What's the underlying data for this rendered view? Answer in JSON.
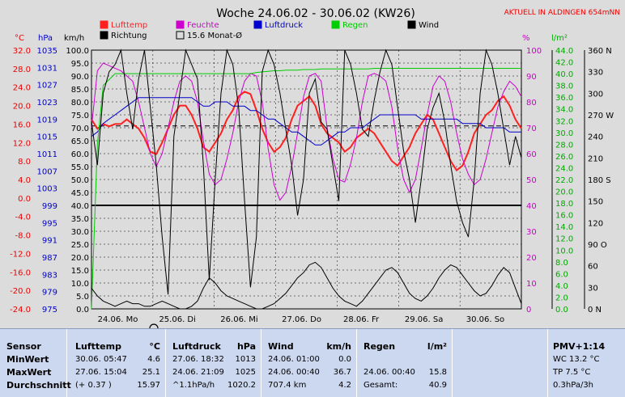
{
  "title": "Woche 24.06.02 - 30.06.02 (KW26)",
  "station": "AKTUELL IN ALDINGEN 654mNN",
  "colors": {
    "lufttemp": "#ff2020",
    "feuchte": "#cc00cc",
    "luftdruck": "#0000cc",
    "regen": "#00cc00",
    "wind": "#000000",
    "richtung": "#000000",
    "temp_axis": "#ee0000",
    "press_axis": "#0000cc",
    "hum_axis": "#cc00cc",
    "rain_axis": "#00aa00"
  },
  "legend": [
    {
      "label": "Lufttemp",
      "color": "#ff2020",
      "style": "filled"
    },
    {
      "label": "Feuchte",
      "color": "#cc00cc",
      "style": "filled"
    },
    {
      "label": "Luftdruck",
      "color": "#0000cc",
      "style": "filled"
    },
    {
      "label": "Regen",
      "color": "#00cc00",
      "style": "filled"
    },
    {
      "label": "Wind",
      "color": "#000000",
      "style": "filled"
    },
    {
      "label": "Richtung",
      "color": "#000000",
      "style": "filled"
    },
    {
      "label": "15.6 Monat-Ø",
      "color": "#000000",
      "style": "outline"
    }
  ],
  "axis_units": {
    "temp": "°C",
    "press": "hPa",
    "wind": "km/h",
    "hum": "%",
    "rain": "l/m²"
  },
  "chart_data": {
    "type": "line",
    "title": "Woche 24.06.02 - 30.06.02 (KW26)",
    "x_labels": [
      "24.06. Mo",
      "25.06. Di",
      "26.06. Mi",
      "27.06. Do",
      "28.06. Fr",
      "29.06. Sa",
      "30.06. So"
    ],
    "axes": {
      "temp": {
        "unit": "°C",
        "min": -24,
        "max": 32,
        "ticks": [
          "32.0",
          "28.0",
          "24.0",
          "20.0",
          "16.0",
          "12.0",
          "8.0",
          "4.0",
          "0.0",
          "-4.0",
          "-8.0",
          "-12.0",
          "-16.0",
          "-20.0",
          "-24.0"
        ]
      },
      "press": {
        "unit": "hPa",
        "min": 975,
        "max": 1035,
        "ticks": [
          "1035",
          "1031",
          "1027",
          "1023",
          "1019",
          "1015",
          "1011",
          "1007",
          "1003",
          "999",
          "995",
          "991",
          "987",
          "983",
          "979",
          "975"
        ]
      },
      "wind": {
        "unit": "km/h",
        "min": 0,
        "max": 100,
        "ticks": [
          "100.0",
          "95.0",
          "90.0",
          "85.0",
          "80.0",
          "75.0",
          "70.0",
          "65.0",
          "60.0",
          "55.0",
          "50.0",
          "45.0",
          "40.0",
          "35.0",
          "30.0",
          "25.0",
          "20.0",
          "15.0",
          "10.0",
          "5.0",
          "0.0"
        ]
      },
      "hum": {
        "unit": "%",
        "min": 0,
        "max": 100,
        "ticks": [
          "100",
          "90",
          "80",
          "70",
          "60",
          "50",
          "40",
          "30",
          "20",
          "10",
          "0"
        ]
      },
      "rain": {
        "unit": "l/m²",
        "min": 0,
        "max": 44,
        "ticks": [
          "44.0",
          "42.0",
          "40.0",
          "38.0",
          "36.0",
          "34.0",
          "32.0",
          "30.0",
          "28.0",
          "26.0",
          "24.0",
          "22.0",
          "20.0",
          "18.0",
          "16.0",
          "14.0",
          "12.0",
          "10.0",
          "8.0",
          "6.0",
          "4.0",
          "2.0",
          "0.0"
        ]
      },
      "dir": {
        "min": 0,
        "max": 360,
        "ticks": [
          "360 N",
          "330",
          "300",
          "270 W",
          "240",
          "210",
          "180 S",
          "150",
          "120",
          "90 O",
          "60",
          "30",
          "0 N"
        ]
      }
    },
    "monat_avg_temp": 15.6,
    "series": [
      {
        "name": "Lufttemp",
        "axis": "temp",
        "values": [
          17,
          15,
          16,
          15.5,
          16,
          16,
          17,
          16,
          15,
          13,
          10,
          9.5,
          12,
          15,
          18,
          20,
          20,
          18,
          15,
          11,
          10,
          12,
          14,
          17,
          19,
          22,
          23,
          22.5,
          19,
          15,
          12,
          10,
          11,
          13,
          17,
          20,
          21,
          22,
          20,
          16,
          14,
          13,
          12,
          10,
          11,
          13,
          14,
          15,
          14,
          12,
          10,
          8,
          7,
          9,
          11,
          14,
          16,
          18,
          17,
          14,
          11,
          8,
          6,
          7,
          10,
          14,
          16,
          18,
          19,
          21,
          22,
          20,
          17,
          15
        ]
      },
      {
        "name": "Feuchte",
        "axis": "hum",
        "values": [
          70,
          92,
          95,
          94,
          93,
          92,
          90,
          88,
          80,
          70,
          60,
          55,
          60,
          70,
          80,
          88,
          90,
          88,
          80,
          65,
          52,
          48,
          50,
          58,
          68,
          80,
          88,
          91,
          90,
          80,
          62,
          48,
          42,
          45,
          55,
          68,
          82,
          90,
          91,
          88,
          70,
          58,
          50,
          49,
          56,
          66,
          80,
          90,
          91,
          90,
          88,
          78,
          62,
          50,
          45,
          50,
          62,
          75,
          86,
          90,
          88,
          80,
          68,
          58,
          52,
          48,
          50,
          58,
          68,
          78,
          84,
          88,
          86,
          82
        ]
      },
      {
        "name": "Luftdruck",
        "axis": "press",
        "values": [
          1015,
          1016,
          1018,
          1019,
          1020,
          1021,
          1022,
          1023,
          1024,
          1024,
          1024,
          1024,
          1024,
          1024,
          1024,
          1024,
          1024,
          1024,
          1023,
          1022,
          1022,
          1023,
          1023,
          1023,
          1022,
          1022,
          1022,
          1021,
          1021,
          1020,
          1019,
          1019,
          1018,
          1017,
          1016,
          1016,
          1015,
          1014,
          1013,
          1013,
          1014,
          1015,
          1016,
          1016,
          1017,
          1017,
          1017,
          1018,
          1019,
          1020,
          1020,
          1020,
          1020,
          1020,
          1020,
          1020,
          1019,
          1019,
          1019,
          1019,
          1019,
          1019,
          1019,
          1018,
          1018,
          1018,
          1018,
          1017,
          1017,
          1017,
          1017,
          1016,
          1016,
          1016
        ]
      },
      {
        "name": "Regen",
        "axis": "rain",
        "values": [
          0,
          28,
          38,
          39,
          40,
          40,
          40,
          40,
          40,
          40,
          40,
          40,
          40,
          40,
          40,
          40,
          40,
          40,
          40,
          40,
          40,
          40,
          40,
          40,
          40,
          40,
          40,
          40,
          40.2,
          40.3,
          40.4,
          40.5,
          40.5,
          40.6,
          40.6,
          40.6,
          40.7,
          40.7,
          40.7,
          40.8,
          40.8,
          40.8,
          40.8,
          40.8,
          40.8,
          40.8,
          40.8,
          40.8,
          40.9,
          40.9,
          40.9,
          40.9,
          40.9,
          40.9,
          40.9,
          40.9,
          40.9,
          40.9,
          40.9,
          40.9,
          40.9,
          40.9,
          40.9,
          40.9,
          40.9,
          40.9,
          40.9,
          40.9,
          40.9,
          40.9,
          40.9,
          40.9,
          40.9,
          40.9
        ]
      },
      {
        "name": "Wind",
        "axis": "wind",
        "values": [
          8,
          5,
          3,
          2,
          1,
          2,
          3,
          2,
          2,
          1,
          1,
          2,
          3,
          2,
          1,
          0,
          0,
          1,
          3,
          8,
          12,
          10,
          7,
          5,
          4,
          3,
          2,
          1,
          0,
          0,
          1,
          2,
          4,
          6,
          9,
          12,
          14,
          17,
          18,
          16,
          12,
          8,
          5,
          3,
          2,
          1,
          3,
          6,
          9,
          12,
          15,
          16,
          14,
          10,
          6,
          4,
          3,
          5,
          8,
          12,
          15,
          17,
          16,
          13,
          10,
          7,
          5,
          6,
          9,
          13,
          16,
          14,
          8,
          2
        ]
      },
      {
        "name": "Richtung",
        "axis": "dir",
        "values": [
          260,
          200,
          300,
          330,
          340,
          360,
          300,
          250,
          320,
          360,
          280,
          200,
          100,
          20,
          240,
          300,
          360,
          340,
          320,
          200,
          40,
          180,
          300,
          360,
          340,
          280,
          150,
          30,
          100,
          330,
          360,
          340,
          300,
          250,
          200,
          130,
          180,
          300,
          320,
          260,
          250,
          200,
          150,
          360,
          340,
          300,
          250,
          240,
          290,
          330,
          360,
          340,
          280,
          220,
          180,
          120,
          180,
          250,
          280,
          300,
          260,
          200,
          150,
          120,
          100,
          180,
          300,
          360,
          340,
          300,
          250,
          200,
          240,
          210
        ]
      }
    ]
  },
  "stats": {
    "headers": {
      "sensor": "Sensor",
      "lufttemp": "Lufttemp",
      "lufttemp_unit": "°C",
      "luftdruck": "Luftdruck",
      "luftdruck_unit": "hPa",
      "wind": "Wind",
      "wind_unit": "km/h",
      "regen": "Regen",
      "regen_unit": "l/m²",
      "pmv": "PMV+1:14"
    },
    "rows": [
      {
        "label": "MinWert",
        "temp_time": "30.06.  05:47",
        "temp_val": "4.6",
        "press_time": "27.06.  18:32",
        "press_val": "1013",
        "wind_time": "24.06.  01:00",
        "wind_val": "0.0",
        "rain_time": "",
        "rain_val": "",
        "pmv": "WC 13.2 °C"
      },
      {
        "label": "MaxWert",
        "temp_time": "27.06.  15:04",
        "temp_val": "25.1",
        "press_time": "24.06.  21:09",
        "press_val": "1025",
        "wind_time": "24.06.  00:40",
        "wind_val": "36.7",
        "rain_time": "24.06.  00:40",
        "rain_val": "15.8",
        "pmv": "TP 7.5 °C"
      },
      {
        "label": "Durchschnitt",
        "temp_time": "(+ 0.37 )",
        "temp_val": "15.97",
        "press_time": "^1.1hPa/h",
        "press_val": "1020.2",
        "wind_time": "707.4 km",
        "wind_val": "4.2",
        "rain_time": "Gesamt:",
        "rain_val": "40.9",
        "pmv": "0.3hPa/3h"
      }
    ]
  }
}
